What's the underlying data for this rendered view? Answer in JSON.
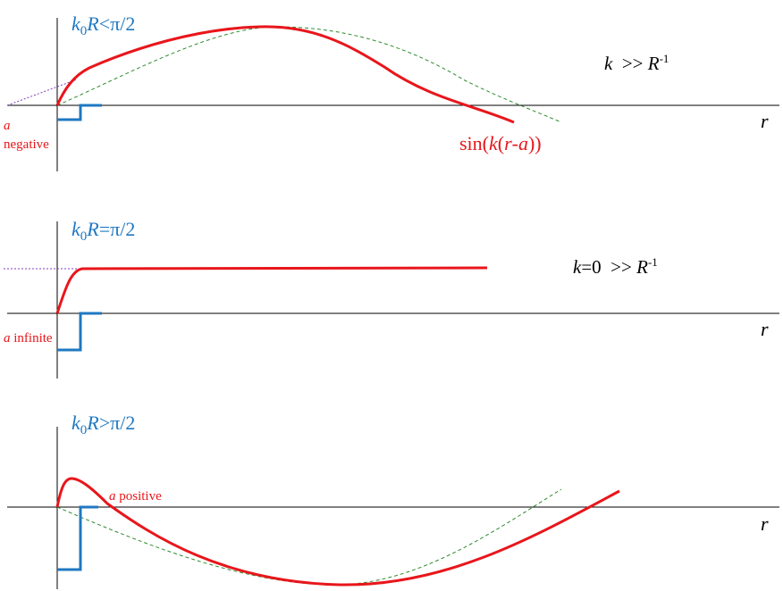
{
  "colors": {
    "red": "#e8161b",
    "blue": "#1f78c1",
    "green": "#2e8b2e",
    "purple": "#8040c0",
    "axis": "#000000"
  },
  "panels": [
    {
      "title": {
        "k": "k",
        "sub": "0",
        "R": "R",
        "rel": "<π/2"
      },
      "note": {
        "k": "k",
        "mid": "  >> ",
        "R": "R",
        "sup": "-1"
      },
      "axis_label": "r",
      "a_label": {
        "a": "a",
        "text": "negative"
      },
      "curve_label": {
        "pre": "sin(",
        "k": "k",
        "p1": "(",
        "r": "r",
        "dash": "-",
        "a": "a",
        "post": "))"
      }
    },
    {
      "title": {
        "k": "k",
        "sub": "0",
        "R": "R",
        "rel": "=π/2"
      },
      "note": {
        "k": "k",
        "mid": "=0  >> ",
        "R": "R",
        "sup": "-1"
      },
      "axis_label": "r",
      "a_label": {
        "a": "a",
        "text": " infinite"
      }
    },
    {
      "title": {
        "k": "k",
        "sub": "0",
        "R": "R",
        "rel": ">π/2"
      },
      "axis_label": "r",
      "a_label": {
        "a": "a",
        "text": " positive"
      }
    }
  ]
}
